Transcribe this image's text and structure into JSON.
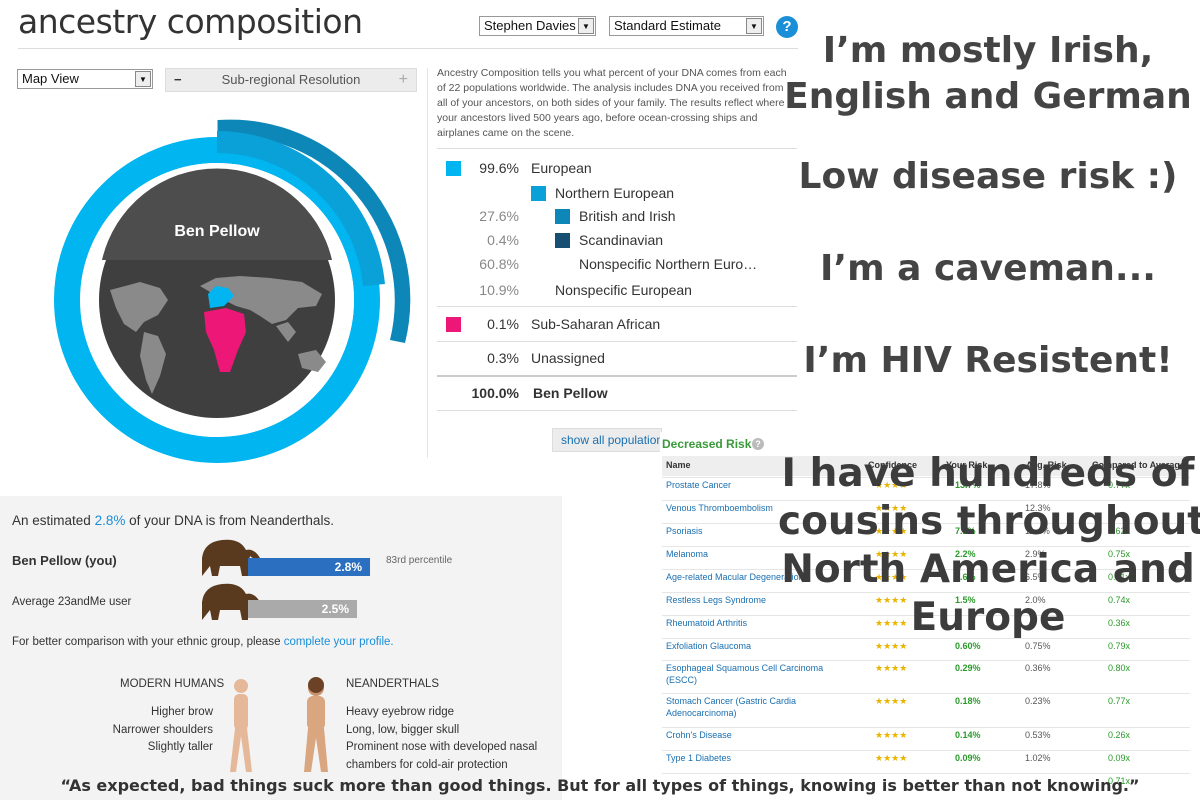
{
  "ancestry": {
    "title": "ancestry composition",
    "profile_select": "Stephen Davies",
    "estimate_select": "Standard Estimate",
    "help_label": "?",
    "view_select": "Map View",
    "resolution_label": "Sub-regional Resolution",
    "resolution_minus": "−",
    "resolution_plus": "+",
    "description": "Ancestry Composition tells you what percent of your DNA comes from each of 22 populations worldwide. The analysis includes DNA you received from all of your ancestors, on both sides of your family. The results reflect where your ancestors lived 500 years ago, before ocean-crossing ships and airplanes came on the scene.",
    "donut_name": "Ben Pellow",
    "show_all_label": "show all populations",
    "colors": {
      "european": "#00b5f0",
      "northern": "#0aa0d8",
      "british": "#0d87b8",
      "scandinavian": "#164f72",
      "african": "#ec1777"
    },
    "rows": [
      {
        "pct": "99.6%",
        "label": "European"
      },
      {
        "pct": "",
        "label": "Northern European"
      },
      {
        "pct": "27.6%",
        "label": "British and Irish"
      },
      {
        "pct": "0.4%",
        "label": "Scandinavian"
      },
      {
        "pct": "60.8%",
        "label": "Nonspecific Northern Euro…"
      },
      {
        "pct": "10.9%",
        "label": "Nonspecific European"
      },
      {
        "pct": "0.1%",
        "label": "Sub-Saharan African"
      },
      {
        "pct": "0.3%",
        "label": "Unassigned"
      },
      {
        "pct": "100.0%",
        "label": "Ben Pellow"
      }
    ]
  },
  "neanderthal": {
    "headline_pre": "An estimated",
    "headline_pct": "2.8%",
    "headline_post": "of your DNA is from Neanderthals.",
    "you_label": "Ben Pellow (you)",
    "you_value": "2.8%",
    "you_fraction": 0.95,
    "percentile_num": "83rd",
    "percentile_word": "percentile",
    "avg_label": "Average 23andMe user",
    "avg_value": "2.5%",
    "avg_fraction": 0.85,
    "compare_pre": "For better comparison with your ethnic group, please",
    "compare_link": "complete your profile.",
    "modern_title": "MODERN HUMANS",
    "modern_traits": [
      "Higher brow",
      "Narrower shoulders",
      "Slightly taller"
    ],
    "nean_title": "NEANDERTHALS",
    "nean_traits": [
      "Heavy eyebrow ridge",
      "Long, low, bigger skull",
      "Prominent nose with developed nasal",
      "chambers for cold-air protection"
    ]
  },
  "risk": {
    "title": "Decreased Risk",
    "columns": [
      "Name",
      "Confidence",
      "Your Risk",
      "Avg. Risk",
      "Compared to Average"
    ],
    "rows": [
      {
        "name": "Prostate Cancer",
        "conf": "★★★★",
        "your": "13.7%",
        "avg": "17.8%",
        "cmp": "0.77x"
      },
      {
        "name": "Venous Thromboembolism",
        "conf": "★★★★",
        "your": "",
        "avg": "12.3%",
        "cmp": ""
      },
      {
        "name": "Psoriasis",
        "conf": "★★★★",
        "your": "7.1%",
        "avg": "11.4%",
        "cmp": "0.62x"
      },
      {
        "name": "Melanoma",
        "conf": "★★★★",
        "your": "2.2%",
        "avg": "2.9%",
        "cmp": "0.75x"
      },
      {
        "name": "Age-related Macular Degeneration",
        "conf": "★★★★",
        "your": "4.6%",
        "avg": "6.5%",
        "cmp": "0.71x"
      },
      {
        "name": "Restless Legs Syndrome",
        "conf": "★★★★",
        "your": "1.5%",
        "avg": "2.0%",
        "cmp": "0.74x"
      },
      {
        "name": "Rheumatoid Arthritis",
        "conf": "★★★★",
        "your": "",
        "avg": "",
        "cmp": "0.36x"
      },
      {
        "name": "Exfoliation Glaucoma",
        "conf": "★★★★",
        "your": "0.60%",
        "avg": "0.75%",
        "cmp": "0.79x"
      },
      {
        "name": "Esophageal Squamous Cell Carcinoma",
        "name2": "(ESCC)",
        "conf": "★★★★",
        "your": "0.29%",
        "avg": "0.36%",
        "cmp": "0.80x"
      },
      {
        "name": "Stomach Cancer (Gastric Cardia",
        "name2": "Adenocarcinoma)",
        "conf": "★★★★",
        "your": "0.18%",
        "avg": "0.23%",
        "cmp": "0.77x"
      },
      {
        "name": "Crohn's Disease",
        "conf": "★★★★",
        "your": "0.14%",
        "avg": "0.53%",
        "cmp": "0.26x"
      },
      {
        "name": "Type 1 Diabetes",
        "conf": "★★★★",
        "your": "0.09%",
        "avg": "1.02%",
        "cmp": "0.09x"
      },
      {
        "name": "",
        "conf": "",
        "your": "",
        "avg": "",
        "cmp": "0.71x"
      }
    ]
  },
  "captions": {
    "c1a": "I’m mostly Irish,",
    "c1b": "English and German",
    "c2": "Low disease risk :)",
    "c3": "I’m a caveman...",
    "c4": "I’m HIV Resistent!",
    "c5a": "I have hundreds of",
    "c5b": "cousins throughout",
    "c5c": "North America and",
    "c5d": "Europe",
    "quote": "“As expected, bad things suck more than good things.  But for all types of things, knowing is better than not knowing.”"
  }
}
